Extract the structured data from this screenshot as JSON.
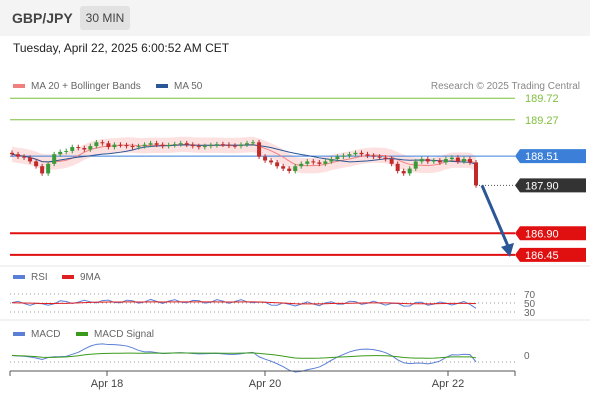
{
  "header": {
    "symbol": "GBP/JPY",
    "timeframe": "30 MIN",
    "timestamp": "Tuesday, April 22, 2025 6:00:52 AM CET"
  },
  "legend": {
    "ma20_label": "MA 20 + Bollinger Bands",
    "ma20_color": "#f08080",
    "ma50_label": "MA 50",
    "ma50_color": "#2b5797",
    "copyright": "Research © 2025 Trading Central"
  },
  "rsi_legend": {
    "rsi_label": "RSI",
    "rsi_color": "#5b7fd6",
    "ma_label": "9MA",
    "ma_color": "#e02020"
  },
  "macd_legend": {
    "macd_label": "MACD",
    "macd_color": "#5b7fd6",
    "signal_label": "MACD Signal",
    "signal_color": "#3a9a1a"
  },
  "chart_data": [
    {
      "type": "candlestick",
      "x_ticks": [
        "Apr 18",
        "Apr 20",
        "Apr 22"
      ],
      "ylim": [
        186.3,
        189.85
      ],
      "current_price": {
        "label": "188.51",
        "value": 188.51,
        "color": "#3b7fd9"
      },
      "last_price": {
        "label": "187.90",
        "value": 187.9,
        "color": "#333333"
      },
      "resistance_levels": [
        {
          "label": "189.72",
          "value": 189.72,
          "color": "#7fbf3f"
        },
        {
          "label": "189.27",
          "value": 189.27,
          "color": "#7fbf3f"
        }
      ],
      "support_levels": [
        {
          "label": "186.90",
          "value": 186.9,
          "color": "#e01010"
        },
        {
          "label": "186.45",
          "value": 186.45,
          "color": "#e01010"
        }
      ],
      "forecast_arrow": {
        "from": 187.9,
        "to": 186.45,
        "color": "#2b5797"
      },
      "close_series": [
        188.55,
        188.5,
        188.48,
        188.4,
        188.3,
        188.15,
        188.35,
        188.55,
        188.6,
        188.62,
        188.7,
        188.68,
        188.65,
        188.72,
        188.8,
        188.78,
        188.7,
        188.75,
        188.74,
        188.72,
        188.7,
        188.72,
        188.75,
        188.78,
        188.75,
        188.72,
        188.74,
        188.76,
        188.78,
        188.75,
        188.72,
        188.7,
        188.72,
        188.74,
        188.76,
        188.75,
        188.73,
        188.72,
        188.75,
        188.78,
        188.8,
        188.5,
        188.42,
        188.38,
        188.3,
        188.25,
        188.2,
        188.3,
        188.35,
        188.4,
        188.38,
        188.35,
        188.4,
        188.45,
        188.5,
        188.52,
        188.55,
        188.58,
        188.55,
        188.52,
        188.5,
        188.48,
        188.45,
        188.35,
        188.2,
        188.15,
        188.25,
        188.4,
        188.45,
        188.4,
        188.42,
        188.38,
        188.45,
        188.48,
        188.4,
        188.45,
        188.38,
        187.9
      ]
    },
    {
      "type": "line",
      "title": "RSI",
      "y_ticks": [
        "70",
        "50",
        "30"
      ],
      "ylim": [
        20,
        80
      ]
    },
    {
      "type": "line",
      "title": "MACD",
      "y_ticks": [
        "0"
      ]
    }
  ]
}
